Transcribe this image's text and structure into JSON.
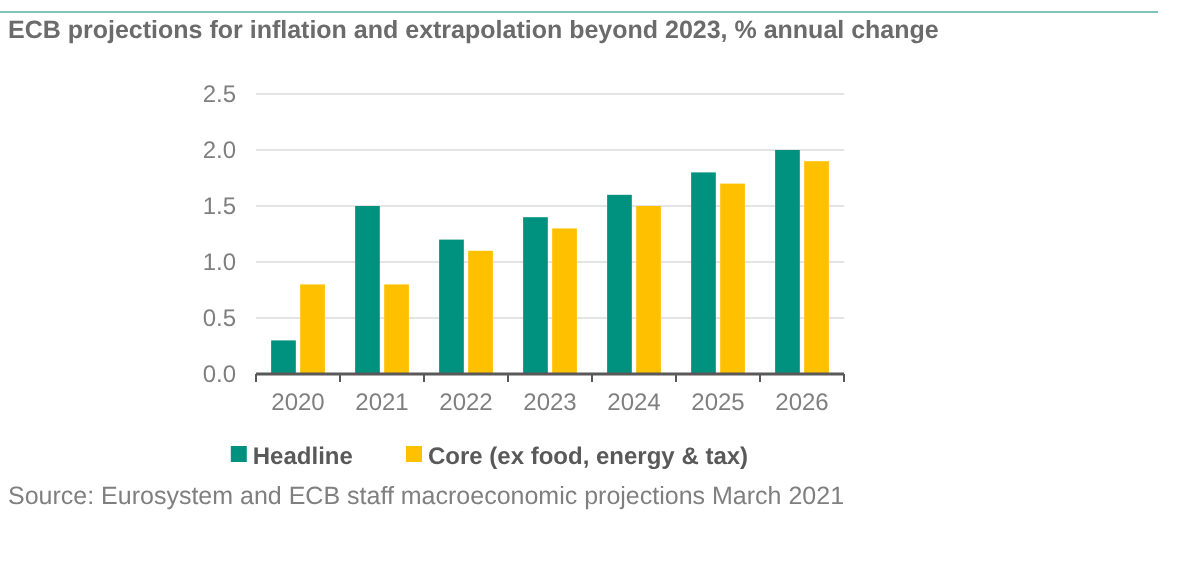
{
  "chart_data": {
    "type": "bar",
    "title": "ECB projections for inflation and extrapolation beyond 2023, % annual change",
    "categories": [
      "2020",
      "2021",
      "2022",
      "2023",
      "2024",
      "2025",
      "2026"
    ],
    "series": [
      {
        "name": "Headline",
        "color": "#00927f",
        "values": [
          0.3,
          1.5,
          1.2,
          1.4,
          1.6,
          1.8,
          2.0
        ]
      },
      {
        "name": "Core (ex food, energy & tax)",
        "color": "#ffc000",
        "values": [
          0.8,
          0.8,
          1.1,
          1.3,
          1.5,
          1.7,
          1.9
        ]
      }
    ],
    "ylim": [
      0,
      2.5
    ],
    "yticks": [
      {
        "value": 0,
        "label": "0.0"
      },
      {
        "value": 0.5,
        "label": "0.5"
      },
      {
        "value": 1,
        "label": "1.0"
      },
      {
        "value": 1.5,
        "label": "1.5"
      },
      {
        "value": 2,
        "label": "2.0"
      },
      {
        "value": 2.5,
        "label": "2.5"
      }
    ],
    "grid": "y",
    "legend": "bottom",
    "annotations": [
      "Source: Eurosystem and ECB staff macroeconomic projections March 2021"
    ]
  }
}
